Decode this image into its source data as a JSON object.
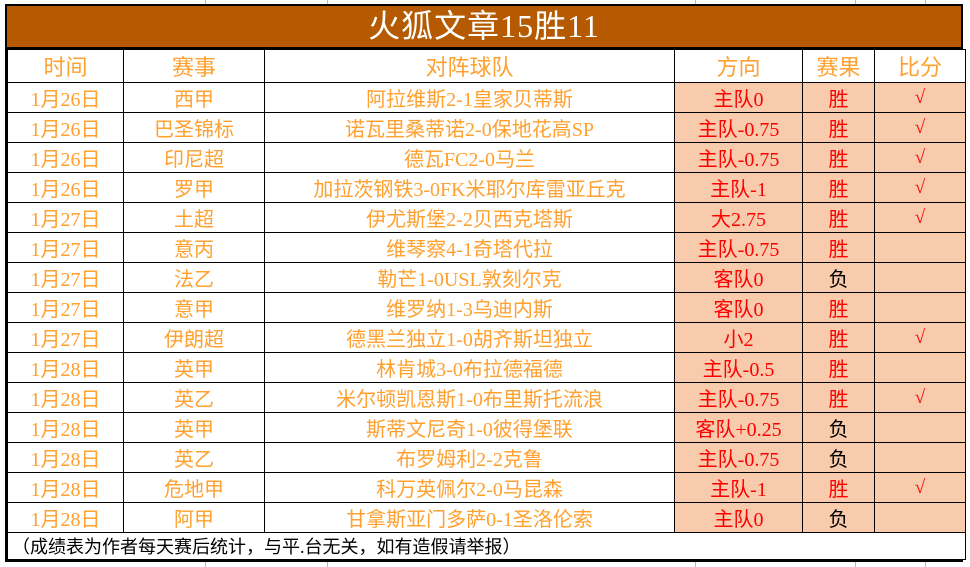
{
  "title": "火狐文章15胜11",
  "table": {
    "columns": [
      "时间",
      "赛事",
      "对阵球队",
      "方向",
      "赛果",
      "比分"
    ],
    "rows": [
      {
        "date": "1月26日",
        "league": "西甲",
        "match": "阿拉维斯2-1皇家贝蒂斯",
        "direction": "主队0",
        "result": "胜",
        "score": "√"
      },
      {
        "date": "1月26日",
        "league": "巴圣锦标",
        "match": "诺瓦里桑蒂诺2-0保地花高SP",
        "direction": "主队-0.75",
        "result": "胜",
        "score": "√"
      },
      {
        "date": "1月26日",
        "league": "印尼超",
        "match": "德瓦FC2-0马兰",
        "direction": "主队-0.75",
        "result": "胜",
        "score": "√"
      },
      {
        "date": "1月26日",
        "league": "罗甲",
        "match": "加拉茨钢铁3-0FK米耶尔库雷亚丘克",
        "direction": "主队-1",
        "result": "胜",
        "score": "√"
      },
      {
        "date": "1月27日",
        "league": "土超",
        "match": "伊尤斯堡2-2贝西克塔斯",
        "direction": "大2.75",
        "result": "胜",
        "score": "√"
      },
      {
        "date": "1月27日",
        "league": "意丙",
        "match": "维琴察4-1奇塔代拉",
        "direction": "主队-0.75",
        "result": "胜",
        "score": ""
      },
      {
        "date": "1月27日",
        "league": "法乙",
        "match": "勒芒1-0USL敦刻尔克",
        "direction": "客队0",
        "result": "负",
        "score": ""
      },
      {
        "date": "1月27日",
        "league": "意甲",
        "match": "维罗纳1-3乌迪内斯",
        "direction": "客队0",
        "result": "胜",
        "score": ""
      },
      {
        "date": "1月27日",
        "league": "伊朗超",
        "match": "德黑兰独立1-0胡齐斯坦独立",
        "direction": "小2",
        "result": "胜",
        "score": "√"
      },
      {
        "date": "1月28日",
        "league": "英甲",
        "match": "林肯城3-0布拉德福德",
        "direction": "主队-0.5",
        "result": "胜",
        "score": ""
      },
      {
        "date": "1月28日",
        "league": "英乙",
        "match": "米尔顿凯恩斯1-0布里斯托流浪",
        "direction": "主队-0.75",
        "result": "胜",
        "score": "√"
      },
      {
        "date": "1月28日",
        "league": "英甲",
        "match": "斯蒂文尼奇1-0彼得堡联",
        "direction": "客队+0.25",
        "result": "负",
        "score": ""
      },
      {
        "date": "1月28日",
        "league": "英乙",
        "match": "布罗姆利2-2克鲁",
        "direction": "主队-0.75",
        "result": "负",
        "score": ""
      },
      {
        "date": "1月28日",
        "league": "危地甲",
        "match": "科万英佩尔2-0马昆森",
        "direction": "主队-1",
        "result": "胜",
        "score": "√"
      },
      {
        "date": "1月28日",
        "league": "阿甲",
        "match": "甘拿斯亚门多萨0-1圣洛伦索",
        "direction": "主队0",
        "result": "负",
        "score": ""
      }
    ]
  },
  "footer": {
    "note": "（成绩表为作者每天赛后统计，与平.台无关，如有造假请举报）"
  },
  "legend": {
    "win_label": "胜",
    "loss_label": "负",
    "check_mark": "√"
  },
  "colors": {
    "title_bar_bg": "#B55A00",
    "title_text": "#FFFFFF",
    "accent_orange": "#FFA02F",
    "highlight_peach": "#F8CBAD",
    "win_red": "#FF0000",
    "loss_black": "#000000"
  }
}
